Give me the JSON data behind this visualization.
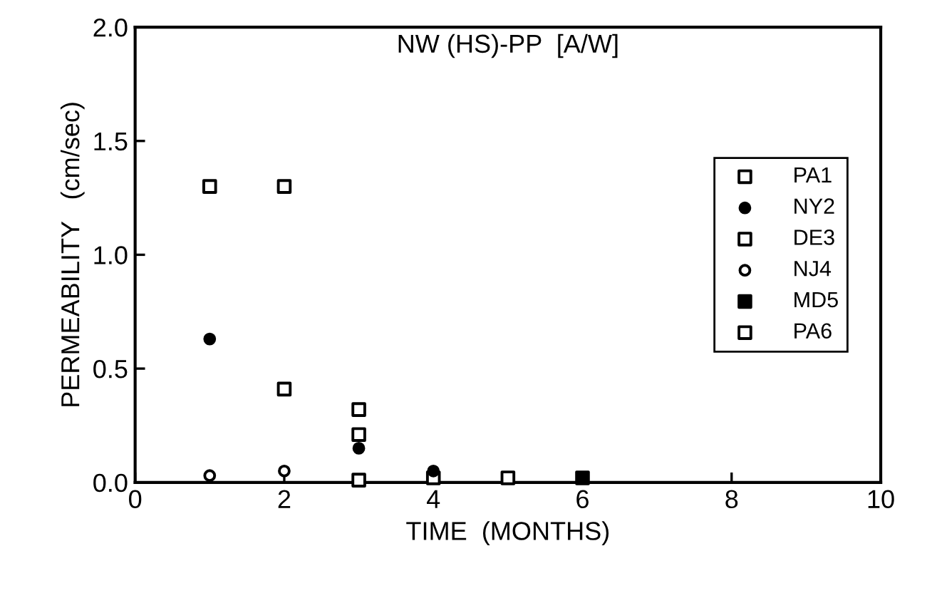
{
  "chart_data": {
    "type": "scatter",
    "title": "NW (HS)-PP  [A/W]",
    "xlabel": "TIME  (MONTHS)",
    "ylabel": "PERMEABILITY   (cm/sec)",
    "xlim": [
      0,
      10
    ],
    "ylim": [
      0,
      2.0
    ],
    "xticks": [
      0,
      2,
      4,
      6,
      8,
      10
    ],
    "yticks": [
      {
        "value": 0,
        "label": "0.0"
      },
      {
        "value": 0.5,
        "label": "0.5"
      },
      {
        "value": 1.0,
        "label": "1.0"
      },
      {
        "value": 1.5,
        "label": "1.5"
      },
      {
        "value": 2.0,
        "label": "2.0"
      }
    ],
    "grid": false,
    "legend": "right",
    "series": [
      {
        "name": "PA1",
        "color": "#ffffff",
        "marker": "square",
        "x": [
          1,
          2,
          3
        ],
        "values": [
          1.3,
          1.3,
          0.32
        ]
      },
      {
        "name": "NY2",
        "color": "#000000",
        "marker": "circle",
        "x": [
          1,
          3,
          4
        ],
        "values": [
          0.63,
          0.15,
          0.05
        ]
      },
      {
        "name": "DE3",
        "color": "#ffffff",
        "marker": "square",
        "x": [
          2,
          3
        ],
        "values": [
          0.41,
          0.21
        ]
      },
      {
        "name": "NJ4",
        "color": "#ffffff",
        "marker": "circle",
        "x": [
          1,
          2
        ],
        "values": [
          0.03,
          0.05
        ]
      },
      {
        "name": "MD5",
        "color": "#000000",
        "marker": "square",
        "x": [
          6
        ],
        "values": [
          0.02
        ]
      },
      {
        "name": "PA6",
        "color": "#ffffff",
        "marker": "square",
        "x": [
          3,
          4,
          5
        ],
        "values": [
          0.01,
          0.02,
          0.02
        ]
      }
    ]
  }
}
